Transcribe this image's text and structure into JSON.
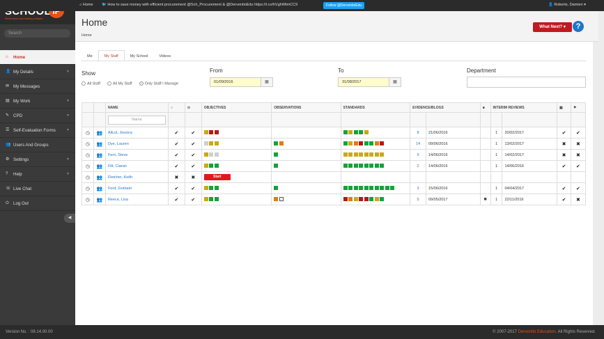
{
  "topbar": {
    "home_label": "Home",
    "tweet_text": "How to save money with efficient procurement @Sch_Procurement & @DerventioEdu https://t.co/hVghWtmCC9",
    "follow_label": "Follow @DerventioEdu",
    "user_name": "Roberts, Damien"
  },
  "logo": {
    "text": "SCHOOL",
    "ip": "iP",
    "tagline": "Performance and tracking software"
  },
  "search": {
    "placeholder": "Search"
  },
  "sidebar": {
    "items": [
      {
        "label": "Home",
        "icon": "home-icon",
        "active": true,
        "chevron": false
      },
      {
        "label": "My Details",
        "icon": "user-icon",
        "active": false,
        "chevron": true
      },
      {
        "label": "My Messages",
        "icon": "envelope-icon",
        "active": false,
        "chevron": false
      },
      {
        "label": "My Work",
        "icon": "briefcase-icon",
        "active": false,
        "chevron": true
      },
      {
        "label": "CPD",
        "icon": "graduation-icon",
        "active": false,
        "chevron": true
      },
      {
        "label": "Self-Evaluation Forms",
        "icon": "form-icon",
        "active": false,
        "chevron": true
      },
      {
        "label": "Users And Groups",
        "icon": "users-icon",
        "active": false,
        "chevron": false
      },
      {
        "label": "Settings",
        "icon": "gear-icon",
        "active": false,
        "chevron": true
      },
      {
        "label": "Help",
        "icon": "help-icon",
        "active": false,
        "chevron": true
      },
      {
        "label": "Live Chat",
        "icon": "chat-icon",
        "active": false,
        "chevron": false
      },
      {
        "label": "Log Out",
        "icon": "logout-icon",
        "active": false,
        "chevron": false
      }
    ]
  },
  "header": {
    "title": "Home",
    "breadcrumb": "Home",
    "what_next_label": "What Next? ▾",
    "help_label": "?"
  },
  "tabs": [
    {
      "label": "Me",
      "active": false
    },
    {
      "label": "My Staff",
      "active": true
    },
    {
      "label": "My School",
      "active": false
    },
    {
      "label": "Videos",
      "active": false
    }
  ],
  "filters": {
    "show_label": "Show",
    "options": [
      {
        "label": "All Staff",
        "selected": false
      },
      {
        "label": "All My Staff",
        "selected": false
      },
      {
        "label": "Only Staff I Manage",
        "selected": true
      }
    ],
    "from_label": "From",
    "from_value": "01/09/2016",
    "to_label": "To",
    "to_value": "31/08/2017",
    "department_label": "Department",
    "department_value": ""
  },
  "table": {
    "headers": {
      "name": "NAME",
      "objectives": "OBJECTIVES",
      "observations": "OBSERVATIONS",
      "standards": "STANDARDS",
      "evidence": "EVIDENCE/BLOGS",
      "interim": "INTERIM REVIEWS"
    },
    "name_filter_placeholder": "Name",
    "start_label": "Start",
    "colors": {
      "g": "#16a23a",
      "y": "#c9a916",
      "r": "#b51818",
      "o": "#e07b16",
      "l": "#cfcfcf"
    },
    "rows": [
      {
        "name": "Allcot, Jessica",
        "c1": "✔",
        "c2": "✔",
        "objectives": "yrr",
        "observations": "",
        "standards": "gyggy",
        "ev_count": "8",
        "ev_date": "21/06/2016",
        "video": false,
        "ir_count": "1",
        "ir_date": "20/02/2017",
        "x1": "✔",
        "x2": "✔"
      },
      {
        "name": "Dye, Lauren",
        "c1": "✔",
        "c2": "✔",
        "objectives": "lyy",
        "observations": "go",
        "standards": "gyorggor",
        "ev_count": "14",
        "ev_date": "09/06/2016",
        "video": false,
        "ir_count": "1",
        "ir_date": "13/02/2017",
        "x1": "✖",
        "x2": "✖"
      },
      {
        "name": "Fern, Steve",
        "c1": "✔",
        "c2": "✔",
        "objectives": "yll",
        "observations": "g",
        "standards": "yyyyyyyy",
        "ev_count": "9",
        "ev_date": "14/06/2016",
        "video": false,
        "ir_count": "1",
        "ir_date": "14/02/2017",
        "x1": "✖",
        "x2": "✖"
      },
      {
        "name": "Fitt, Ciaran",
        "c1": "✔",
        "c2": "✔",
        "objectives": "ygg",
        "observations": "g",
        "standards": "gggggggg",
        "ev_count": "2",
        "ev_date": "14/06/2016",
        "video": false,
        "ir_count": "1",
        "ir_date": "14/06/2016",
        "x1": "✔",
        "x2": "✔"
      },
      {
        "name": "Fletcher, Keith",
        "c1": "✖",
        "c2": "✖",
        "objectives": "START",
        "observations": "",
        "standards": "",
        "ev_count": "",
        "ev_date": "",
        "video": false,
        "ir_count": "",
        "ir_date": "",
        "x1": "",
        "x2": ""
      },
      {
        "name": "Ford, Graham",
        "c1": "✔",
        "c2": "✔",
        "objectives": "ygg",
        "observations": "g",
        "standards": "gggggggggg",
        "ev_count": "3",
        "ev_date": "15/06/2016",
        "video": false,
        "ir_count": "1",
        "ir_date": "04/04/2017",
        "x1": "✔",
        "x2": "✔"
      },
      {
        "name": "Reece, Lisa",
        "c1": "✔",
        "c2": "✔",
        "objectives": "ygg",
        "observations": "ow",
        "standards": "royrrgyg",
        "ev_count": "5",
        "ev_date": "09/05/2017",
        "video": true,
        "ir_count": "1",
        "ir_date": "22/11/2016",
        "x1": "✔",
        "x2": "✖"
      }
    ]
  },
  "footer": {
    "version": "Version No. : 08.14.00.00",
    "copyright_prefix": "© 2007-2017 ",
    "copyright_brand": "Derventio Education",
    "copyright_suffix": ". All Rights Reserved."
  }
}
